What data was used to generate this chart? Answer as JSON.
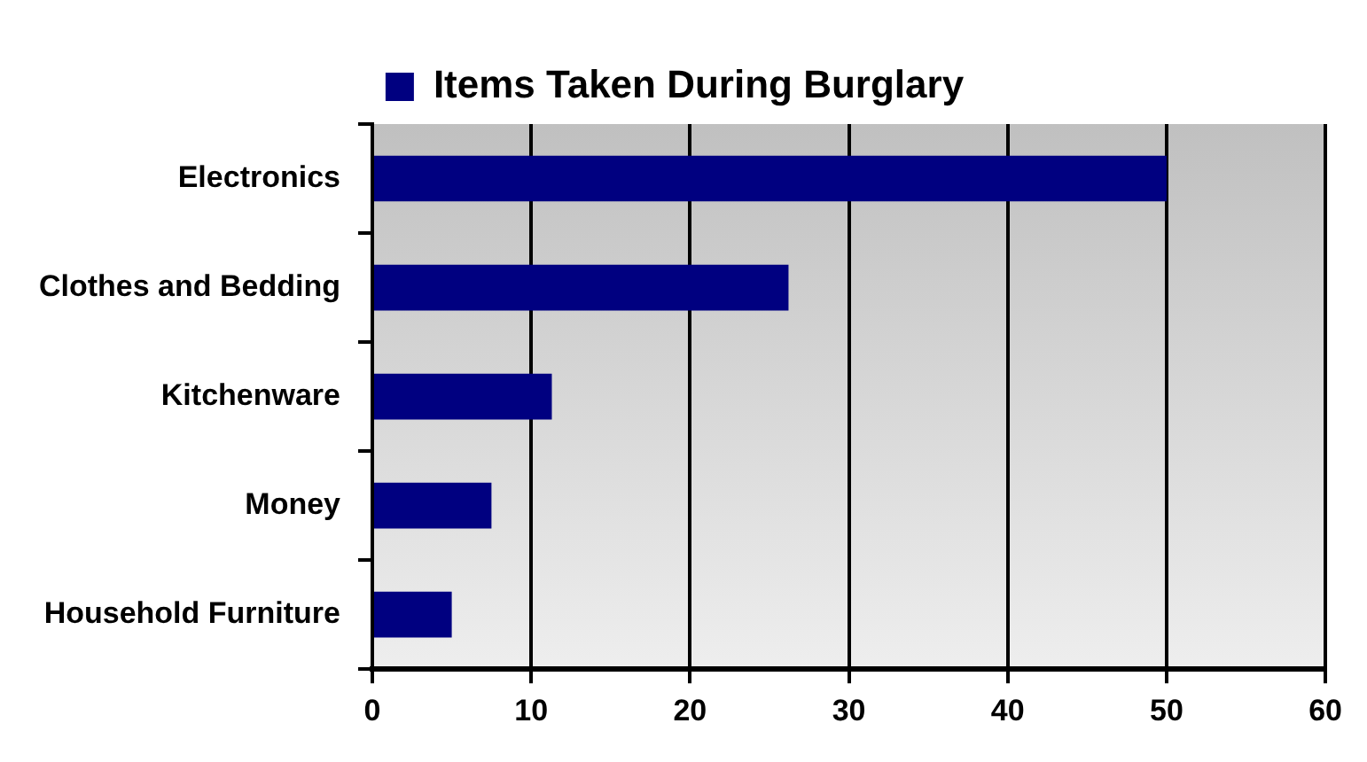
{
  "chart_data": {
    "type": "bar",
    "orientation": "horizontal",
    "categories": [
      "Electronics",
      "Clothes and Bedding",
      "Kitchenware",
      "Money",
      "Household Furniture"
    ],
    "series": [
      {
        "name": "Items Taken During Burglary",
        "color": "#000080",
        "values": [
          50,
          26.2,
          11.3,
          7.5,
          5
        ]
      }
    ],
    "xlim": [
      0,
      60
    ],
    "xticks": [
      0,
      10,
      20,
      30,
      40,
      50,
      60
    ],
    "grid": "x",
    "legend": "top"
  }
}
